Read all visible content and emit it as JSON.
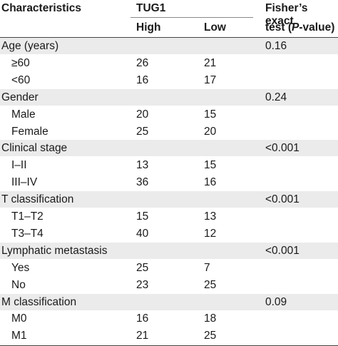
{
  "header": {
    "characteristics": "Characteristics",
    "tug1": "TUG1",
    "high": "High",
    "low": "Low",
    "fisher_line1": "Fisher’s exact",
    "fisher_line2_pre": "test (",
    "fisher_line2_p": "P",
    "fisher_line2_post": "-value)"
  },
  "rows": [
    {
      "type": "group",
      "label": "Age (years)",
      "p": "0.16"
    },
    {
      "type": "item",
      "label": "≥60",
      "high": "26",
      "low": "21"
    },
    {
      "type": "item",
      "label": "<60",
      "high": "16",
      "low": "17"
    },
    {
      "type": "group",
      "label": "Gender",
      "p": "0.24"
    },
    {
      "type": "item",
      "label": "Male",
      "high": "20",
      "low": "15"
    },
    {
      "type": "item",
      "label": "Female",
      "high": "25",
      "low": "20"
    },
    {
      "type": "group",
      "label": "Clinical stage",
      "p": "<0.001"
    },
    {
      "type": "item",
      "label": "I–II",
      "high": "13",
      "low": "15"
    },
    {
      "type": "item",
      "label": "III–IV",
      "high": "36",
      "low": "16"
    },
    {
      "type": "group",
      "label": "T classification",
      "p": "<0.001"
    },
    {
      "type": "item",
      "label": "T1–T2",
      "high": "15",
      "low": "13"
    },
    {
      "type": "item",
      "label": "T3–T4",
      "high": "40",
      "low": "12"
    },
    {
      "type": "group",
      "label": "Lymphatic metastasis",
      "p": "<0.001"
    },
    {
      "type": "item",
      "label": "Yes",
      "high": "25",
      "low": "7"
    },
    {
      "type": "item",
      "label": "No",
      "high": "23",
      "low": "25"
    },
    {
      "type": "group",
      "label": "M classification",
      "p": "0.09"
    },
    {
      "type": "item",
      "label": "M0",
      "high": "16",
      "low": "18"
    },
    {
      "type": "item",
      "label": "M1",
      "high": "21",
      "low": "25"
    }
  ]
}
